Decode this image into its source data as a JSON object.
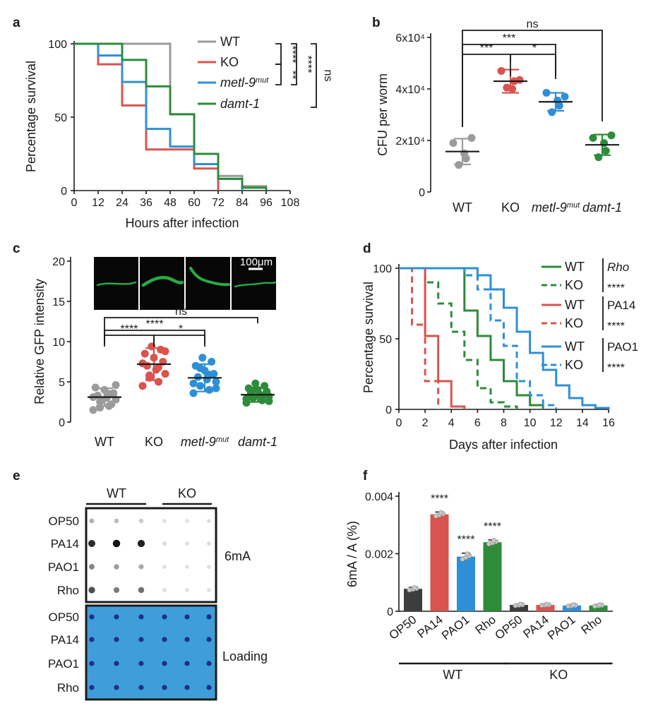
{
  "colors": {
    "WT": "#9b9b9b",
    "KO": "#d9534f",
    "metl": "#2f8fd6",
    "damt": "#2e8b3a",
    "bar_dark": "#3d3d3d"
  },
  "chart_data": [
    {
      "panel": "a",
      "type": "line",
      "step": true,
      "xlabel": "Hours after infection",
      "ylabel": "Percentage survival",
      "xlim": [
        0,
        108
      ],
      "ylim": [
        0,
        100
      ],
      "xticks": [
        0,
        12,
        24,
        36,
        48,
        60,
        72,
        84,
        96,
        108
      ],
      "yticks": [
        0,
        50,
        100
      ],
      "series": [
        {
          "name": "WT",
          "key": "WT",
          "x": [
            0,
            12,
            36,
            48,
            60,
            72,
            84,
            96
          ],
          "y": [
            100,
            100,
            100,
            52,
            25,
            10,
            3,
            0
          ]
        },
        {
          "name": "KO",
          "key": "KO",
          "x": [
            0,
            12,
            24,
            36,
            60,
            72
          ],
          "y": [
            100,
            86,
            58,
            28,
            15,
            0
          ]
        },
        {
          "name": "metl-9",
          "sup": "mut",
          "key": "metl",
          "x": [
            0,
            12,
            24,
            36,
            48,
            60,
            72,
            84
          ],
          "y": [
            100,
            92,
            74,
            42,
            30,
            18,
            8,
            0
          ]
        },
        {
          "name": "damt-1",
          "key": "damt",
          "x": [
            0,
            12,
            24,
            36,
            48,
            60,
            72,
            84,
            96
          ],
          "y": [
            100,
            100,
            89,
            71,
            52,
            25,
            8,
            2,
            0
          ]
        }
      ],
      "significance": [
        "****",
        "**",
        "****",
        "ns"
      ]
    },
    {
      "panel": "b",
      "type": "scatter",
      "ylabel": "CFU per worm",
      "ylim": [
        0,
        60000
      ],
      "ytick_labels": [
        "0",
        "2x10⁴",
        "4x10⁴",
        "6x10⁴"
      ],
      "yticks": [
        0,
        20000,
        40000,
        60000
      ],
      "categories": [
        "WT",
        "KO",
        "metl-9",
        "damt-1"
      ],
      "category_sups": [
        "",
        "",
        "mut",
        ""
      ],
      "means": [
        15700,
        43000,
        35000,
        18300
      ],
      "sd": [
        5000,
        4500,
        3500,
        4000
      ],
      "points": [
        [
          19000,
          13000,
          10500,
          21000,
          15000
        ],
        [
          47000,
          43000,
          40500,
          43500,
          40000
        ],
        [
          38500,
          33500,
          31000,
          37000,
          35500
        ],
        [
          21000,
          16000,
          13500,
          22000,
          19000
        ]
      ],
      "comparisons": [
        {
          "from": 0,
          "to": 3,
          "label": "ns"
        },
        {
          "from": 0,
          "to": 2,
          "label": "***"
        },
        {
          "from": 0,
          "to": 1,
          "label": "***"
        },
        {
          "from": 1,
          "to": 2,
          "label": "*"
        }
      ]
    },
    {
      "panel": "c",
      "type": "scatter",
      "ylabel": "Relative GFP intensity",
      "ylim": [
        0,
        20
      ],
      "yticks": [
        0,
        5,
        10,
        15,
        20
      ],
      "categories": [
        "WT",
        "KO",
        "metl-9",
        "damt-1"
      ],
      "category_sups": [
        "",
        "",
        "mut",
        ""
      ],
      "means": [
        3.1,
        7.2,
        5.5,
        3.4
      ],
      "sd": [
        1.1,
        2.0,
        1.7,
        0.9
      ],
      "points": [
        [
          1.5,
          2.0,
          2.5,
          2.8,
          3.0,
          3.3,
          3.6,
          4.0,
          4.3,
          2.2,
          2.7,
          3.1,
          3.5,
          1.8,
          4.6
        ],
        [
          4.5,
          5.0,
          5.5,
          6.0,
          6.5,
          7.0,
          7.5,
          8.0,
          8.5,
          9.0,
          9.4,
          7.3,
          6.8,
          5.8,
          8.8
        ],
        [
          3.6,
          4.0,
          4.5,
          5.0,
          5.3,
          5.6,
          6.0,
          6.4,
          7.0,
          7.5,
          8.0,
          4.8,
          5.9,
          6.7,
          4.2
        ],
        [
          2.4,
          2.7,
          3.0,
          3.2,
          3.4,
          3.6,
          3.8,
          4.0,
          4.2,
          4.5,
          4.8,
          2.9,
          3.3,
          3.9,
          2.6
        ]
      ],
      "comparisons": [
        {
          "from": 0,
          "to": 3,
          "label": "ns"
        },
        {
          "from": 0,
          "to": 2,
          "label": "****"
        },
        {
          "from": 0,
          "to": 1,
          "label": "****"
        },
        {
          "from": 1,
          "to": 2,
          "label": "*"
        }
      ],
      "scale_bar": "100μm"
    },
    {
      "panel": "d",
      "type": "line",
      "step": true,
      "xlabel": "Days after infection",
      "ylabel": "Percentage survival",
      "xlim": [
        0,
        16
      ],
      "ylim": [
        0,
        100
      ],
      "xticks": [
        0,
        2,
        4,
        6,
        8,
        10,
        12,
        14,
        16
      ],
      "yticks": [
        0,
        50,
        100
      ],
      "series": [
        {
          "name": "WT",
          "group": "Rho",
          "key": "damt",
          "dash": false,
          "x": [
            0,
            4,
            5,
            6,
            7,
            8,
            9,
            10,
            11
          ],
          "y": [
            100,
            100,
            70,
            52,
            35,
            20,
            10,
            3,
            0
          ]
        },
        {
          "name": "KO",
          "group": "Rho",
          "key": "damt",
          "dash": true,
          "x": [
            0,
            2,
            3,
            4,
            5,
            6,
            7,
            8,
            9
          ],
          "y": [
            100,
            90,
            75,
            55,
            35,
            15,
            5,
            2,
            0
          ]
        },
        {
          "name": "WT",
          "group": "PA14",
          "key": "KO",
          "dash": false,
          "x": [
            0,
            1,
            2,
            3,
            4,
            5
          ],
          "y": [
            100,
            100,
            52,
            20,
            2,
            0
          ]
        },
        {
          "name": "KO",
          "group": "PA14",
          "key": "KO",
          "dash": true,
          "x": [
            0,
            1,
            2,
            3
          ],
          "y": [
            100,
            60,
            20,
            0
          ]
        },
        {
          "name": "WT",
          "group": "PAO1",
          "key": "metl",
          "dash": false,
          "x": [
            0,
            5,
            6,
            7,
            8,
            9,
            10,
            11,
            12,
            13,
            14,
            15,
            16
          ],
          "y": [
            100,
            100,
            95,
            85,
            72,
            55,
            40,
            28,
            17,
            8,
            3,
            1,
            0
          ]
        },
        {
          "name": "KO",
          "group": "PAO1",
          "key": "metl",
          "dash": true,
          "x": [
            0,
            4,
            5,
            6,
            7,
            8,
            9,
            10,
            11,
            12
          ],
          "y": [
            100,
            100,
            95,
            85,
            63,
            45,
            20,
            10,
            3,
            0
          ]
        }
      ],
      "significance": [
        "****",
        "****",
        "****"
      ]
    },
    {
      "panel": "e",
      "type": "dot_blot",
      "groups": [
        "WT",
        "KO"
      ],
      "rows": [
        "OP50",
        "PA14",
        "PAO1",
        "Rho"
      ],
      "blots": [
        "6mA",
        "Loading"
      ],
      "intensity_6mA": [
        [
          0.25,
          0.2,
          0.15,
          0.05,
          0.05,
          0.05
        ],
        [
          0.85,
          0.95,
          0.9,
          0.08,
          0.06,
          0.06
        ],
        [
          0.45,
          0.35,
          0.3,
          0.05,
          0.05,
          0.05
        ],
        [
          0.7,
          0.5,
          0.55,
          0.06,
          0.05,
          0.05
        ]
      ]
    },
    {
      "panel": "f",
      "type": "bar",
      "ylabel": "6mA / A (%)",
      "ylim": [
        0,
        0.004
      ],
      "yticks": [
        0,
        0.002,
        0.004
      ],
      "ytick_labels": [
        "0",
        "0.002",
        "0.004"
      ],
      "categories": [
        "OP50",
        "PA14",
        "PAO1",
        "Rho",
        "OP50",
        "PA14",
        "PAO1",
        "Rho"
      ],
      "groups": [
        {
          "label": "WT",
          "start": 0,
          "end": 3
        },
        {
          "label": "KO",
          "start": 4,
          "end": 7
        }
      ],
      "values": [
        0.00078,
        0.00337,
        0.0019,
        0.0024,
        0.00022,
        0.00022,
        0.0002,
        0.0002
      ],
      "errors": [
        5e-05,
        8e-05,
        0.00012,
        8e-05,
        3e-05,
        2e-05,
        3e-05,
        3e-05
      ],
      "colors_keys": [
        "bar_dark",
        "KO",
        "metl",
        "damt",
        "bar_dark",
        "KO",
        "metl",
        "damt"
      ],
      "significance": [
        "",
        "****",
        "****",
        "****",
        "",
        "",
        "",
        ""
      ]
    }
  ]
}
